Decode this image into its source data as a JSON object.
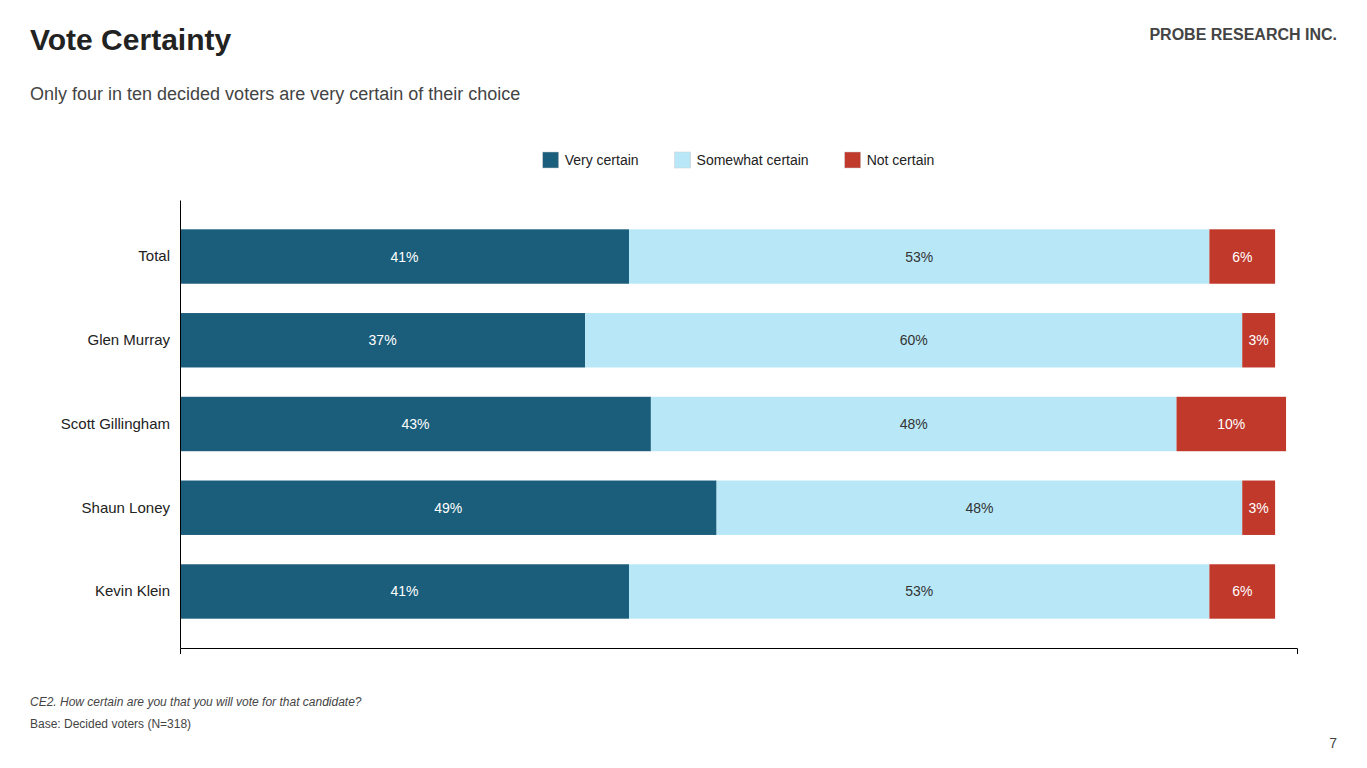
{
  "chart_data": {
    "type": "bar",
    "orientation": "horizontal",
    "stacked": true,
    "data_labels": true,
    "title": "Vote Certainty",
    "subtitle": "Only four in ten decided voters are very certain of their choice",
    "categories": [
      "Total",
      "Glen Murray",
      "Scott Gillingham",
      "Shaun Loney",
      "Kevin Klein"
    ],
    "series": [
      {
        "name": "Very certain",
        "color": "#1b5e7b",
        "values": [
          41,
          37,
          43,
          49,
          41
        ],
        "value_labels": [
          "41%",
          "37%",
          "43%",
          "49%",
          "41%"
        ]
      },
      {
        "name": "Somewhat certain",
        "color": "#b8e8f8",
        "values": [
          53,
          60,
          48,
          48,
          53
        ],
        "value_labels": [
          "53%",
          "60%",
          "48%",
          "48%",
          "53%"
        ]
      },
      {
        "name": "Not certain",
        "color": "#c0392b",
        "values": [
          6,
          3,
          10,
          3,
          6
        ],
        "value_labels": [
          "6%",
          "3%",
          "10%",
          "3%",
          "6%"
        ]
      }
    ],
    "xlim": [
      0,
      102
    ],
    "tick_labels": "y",
    "grid": false,
    "legend": "top",
    "annotations": [
      "CE2. How certain are you that you will vote for that candidate?",
      "Base: Decided voters (N=318)",
      "7",
      "PROBE RESEARCH INC."
    ]
  }
}
